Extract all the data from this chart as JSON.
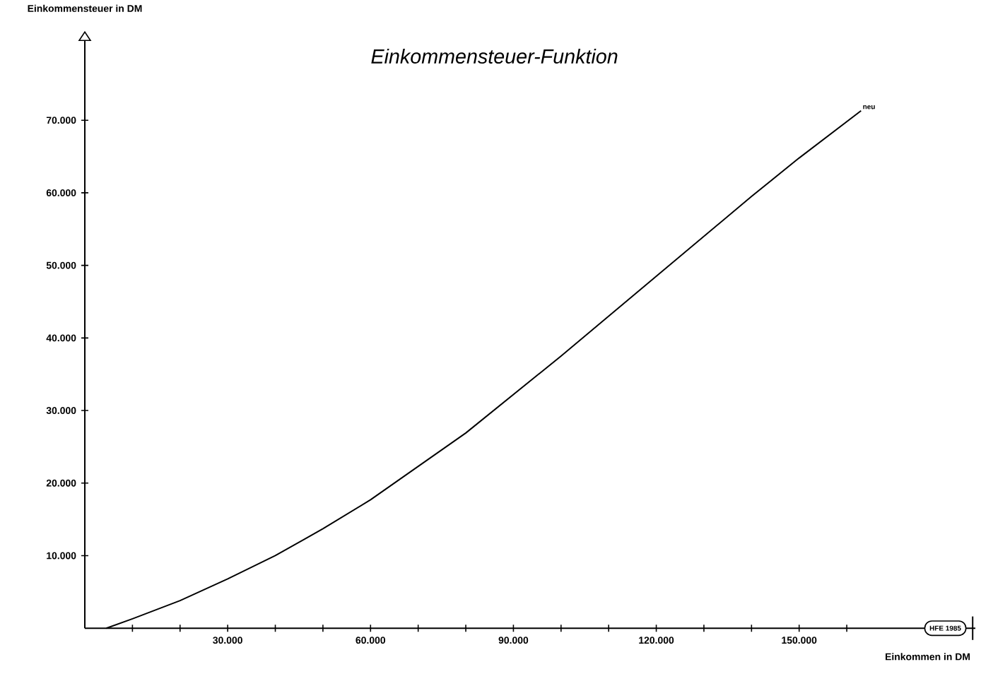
{
  "chart_data": {
    "type": "line",
    "title": "Einkommensteuer-Funktion",
    "xlabel": "Einkommen in DM",
    "ylabel": "Einkommensteuer in DM",
    "annotations": [
      "HFE 1985"
    ],
    "xlim": [
      0,
      187000
    ],
    "ylim": [
      0,
      81000
    ],
    "xticks": [
      {
        "value": 10000,
        "label": null
      },
      {
        "value": 20000,
        "label": null
      },
      {
        "value": 30000,
        "label": "30.000"
      },
      {
        "value": 40000,
        "label": null
      },
      {
        "value": 50000,
        "label": null
      },
      {
        "value": 60000,
        "label": "60.000"
      },
      {
        "value": 70000,
        "label": null
      },
      {
        "value": 80000,
        "label": null
      },
      {
        "value": 90000,
        "label": "90.000"
      },
      {
        "value": 100000,
        "label": null
      },
      {
        "value": 110000,
        "label": null
      },
      {
        "value": 120000,
        "label": "120.000"
      },
      {
        "value": 130000,
        "label": null
      },
      {
        "value": 140000,
        "label": null
      },
      {
        "value": 150000,
        "label": "150.000"
      },
      {
        "value": 160000,
        "label": null
      }
    ],
    "yticks": [
      {
        "value": 10000,
        "label": "10.000"
      },
      {
        "value": 20000,
        "label": "20.000"
      },
      {
        "value": 30000,
        "label": "30.000"
      },
      {
        "value": 40000,
        "label": "40.000"
      },
      {
        "value": 50000,
        "label": "50.000"
      },
      {
        "value": 60000,
        "label": "60.000"
      },
      {
        "value": 70000,
        "label": "70.000"
      }
    ],
    "grid": false,
    "marker": "none",
    "line_style": "solid",
    "series": [
      {
        "name": "neu",
        "color": "#000000",
        "x": [
          4500,
          10000,
          20000,
          30000,
          40000,
          50000,
          60000,
          70000,
          80000,
          90000,
          100000,
          110000,
          120000,
          130000,
          140000,
          150000,
          163000
        ],
        "values": [
          0,
          1300,
          3800,
          6800,
          10000,
          13700,
          17700,
          22300,
          26900,
          32200,
          37500,
          43000,
          48500,
          54000,
          59500,
          64800,
          71300
        ]
      }
    ]
  }
}
